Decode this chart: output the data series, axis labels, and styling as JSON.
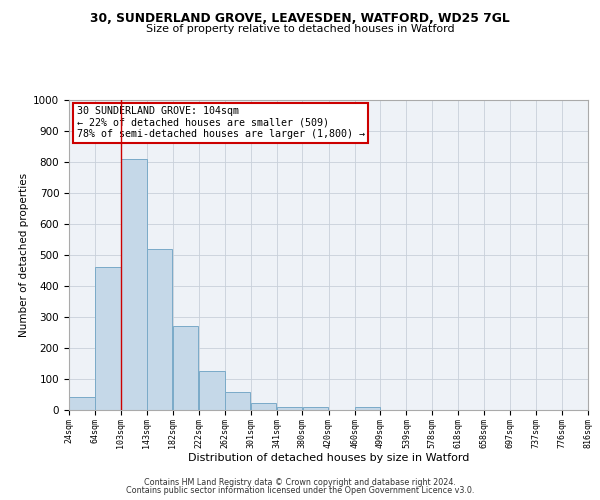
{
  "title1": "30, SUNDERLAND GROVE, LEAVESDEN, WATFORD, WD25 7GL",
  "title2": "Size of property relative to detached houses in Watford",
  "xlabel": "Distribution of detached houses by size in Watford",
  "ylabel": "Number of detached properties",
  "footnote1": "Contains HM Land Registry data © Crown copyright and database right 2024.",
  "footnote2": "Contains public sector information licensed under the Open Government Licence v3.0.",
  "annotation_line1": "30 SUNDERLAND GROVE: 104sqm",
  "annotation_line2": "← 22% of detached houses are smaller (509)",
  "annotation_line3": "78% of semi-detached houses are larger (1,800) →",
  "bar_edges": [
    24,
    64,
    103,
    143,
    182,
    222,
    262,
    301,
    341,
    380,
    420,
    460,
    499,
    539,
    578,
    618,
    658,
    697,
    737,
    776,
    816
  ],
  "bar_heights": [
    42,
    460,
    810,
    520,
    272,
    125,
    57,
    22,
    10,
    10,
    0,
    10,
    0,
    0,
    0,
    0,
    0,
    0,
    0,
    0
  ],
  "bar_color": "#c5d8e8",
  "bar_edge_color": "#7aaac8",
  "property_line_x": 104,
  "property_line_color": "#cc0000",
  "ylim": [
    0,
    1000
  ],
  "xlim": [
    24,
    816
  ],
  "annotation_box_color": "#cc0000",
  "background_color": "#eef2f7",
  "grid_color": "#c8d0da"
}
